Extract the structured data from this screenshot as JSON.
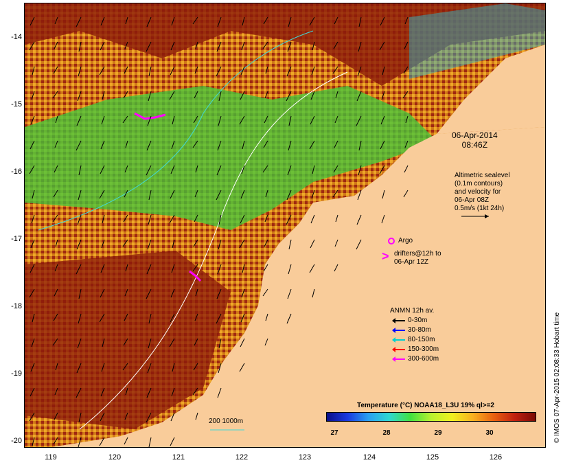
{
  "map": {
    "y_ticks": [
      "-14",
      "-15",
      "-16",
      "-17",
      "-18",
      "-19",
      "-20"
    ],
    "x_ticks": [
      "119",
      "120",
      "121",
      "122",
      "123",
      "124",
      "125",
      "126"
    ],
    "date": {
      "line1": "06-Apr-2014",
      "line2": "08:46Z"
    },
    "altimetry_note": [
      "Altimetric sealevel",
      "(0.1m contours)",
      "and velocity for",
      "06-Apr 08Z",
      "0.5m/s (1kt 24h)"
    ],
    "argo_label": "Argo",
    "drifters_note": [
      "drifters@12h to",
      "06-Apr 12Z"
    ],
    "anmn": {
      "title": "ANMN 12h av.",
      "entries": [
        {
          "label": "0-30m",
          "color": "#000000"
        },
        {
          "label": "30-80m",
          "color": "#0000ff"
        },
        {
          "label": "80-150m",
          "color": "#00d0d0"
        },
        {
          "label": "150-300m",
          "color": "#ff0000"
        },
        {
          "label": "300-600m",
          "color": "#ff00ff"
        }
      ]
    },
    "isobath_label": "200  1000m",
    "colorbar": {
      "title": "Temperature (°C) NOAA18_L3U 19% ql>=2",
      "ticks": [
        "27",
        "28",
        "29",
        "30"
      ]
    },
    "credit": "© IMOS 07-Apr-2015 02:08:33 Hobart time",
    "colors": {
      "land": "#f9cc9a",
      "warm": "#8b1a0a",
      "mid": "#e8a020",
      "cool": "#50d040"
    }
  }
}
